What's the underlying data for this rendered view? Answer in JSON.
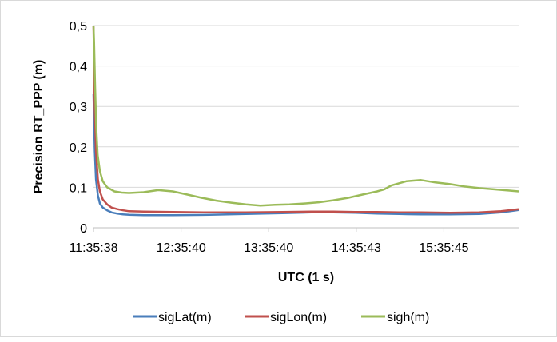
{
  "chart_data": {
    "type": "line",
    "title": "",
    "xlabel": "UTC (1 s)",
    "ylabel": "Precision RT_PPP  (m)",
    "x_tick_labels": [
      "11:35:38",
      "12:35:40",
      "13:35:40",
      "14:35:43",
      "15:35:45"
    ],
    "x_range": [
      "11:35:38",
      "16:27:00"
    ],
    "y_tick_labels": [
      "0",
      "0,1",
      "0,2",
      "0,3",
      "0,4",
      "0,5"
    ],
    "ylim": [
      0,
      0.5
    ],
    "grid": "horizontal",
    "legend_position": "bottom",
    "series": [
      {
        "name": "sigLat(m)",
        "color": "#4a7ebb",
        "x": [
          "11:35:38",
          "11:36:30",
          "11:37:20",
          "11:38:40",
          "11:40:00",
          "11:42:00",
          "11:45:00",
          "11:48:00",
          "11:52:00",
          "11:56:00",
          "12:00:00",
          "12:10:00",
          "12:30:00",
          "12:55:00",
          "13:20:00",
          "13:45:00",
          "14:05:00",
          "14:20:00",
          "14:35:00",
          "14:50:00",
          "15:05:00",
          "15:20:00",
          "15:40:00",
          "16:00:00",
          "16:15:00",
          "16:27:00"
        ],
        "values": [
          0.33,
          0.19,
          0.12,
          0.08,
          0.06,
          0.05,
          0.043,
          0.038,
          0.035,
          0.033,
          0.032,
          0.031,
          0.031,
          0.032,
          0.034,
          0.036,
          0.038,
          0.038,
          0.037,
          0.035,
          0.034,
          0.033,
          0.033,
          0.034,
          0.038,
          0.044
        ]
      },
      {
        "name": "sigLon(m)",
        "color": "#c0504d",
        "x": [
          "11:35:38",
          "11:36:30",
          "11:37:20",
          "11:38:40",
          "11:40:00",
          "11:42:00",
          "11:45:00",
          "11:48:00",
          "11:52:00",
          "11:56:00",
          "12:00:00",
          "12:10:00",
          "12:30:00",
          "12:55:00",
          "13:20:00",
          "13:45:00",
          "14:05:00",
          "14:20:00",
          "14:35:00",
          "14:50:00",
          "15:05:00",
          "15:20:00",
          "15:40:00",
          "16:00:00",
          "16:15:00",
          "16:27:00"
        ],
        "values": [
          0.5,
          0.29,
          0.19,
          0.12,
          0.09,
          0.07,
          0.058,
          0.05,
          0.046,
          0.043,
          0.041,
          0.04,
          0.039,
          0.038,
          0.038,
          0.039,
          0.04,
          0.04,
          0.039,
          0.039,
          0.038,
          0.038,
          0.037,
          0.038,
          0.041,
          0.046
        ]
      },
      {
        "name": "sigh(m)",
        "color": "#9bbb59",
        "x": [
          "11:35:38",
          "11:36:00",
          "11:36:45",
          "11:37:30",
          "11:38:30",
          "11:40:00",
          "11:42:00",
          "11:45:00",
          "11:50:00",
          "11:55:00",
          "12:00:00",
          "12:10:00",
          "12:20:00",
          "12:30:00",
          "12:40:00",
          "12:50:00",
          "13:00:00",
          "13:10:00",
          "13:20:00",
          "13:30:00",
          "13:40:00",
          "13:50:00",
          "14:00:00",
          "14:10:00",
          "14:20:00",
          "14:30:00",
          "14:40:00",
          "14:50:00",
          "14:55:00",
          "15:00:00",
          "15:10:00",
          "15:20:00",
          "15:30:00",
          "15:40:00",
          "15:50:00",
          "16:00:00",
          "16:10:00",
          "16:20:00",
          "16:27:00"
        ],
        "values": [
          0.5,
          0.46,
          0.35,
          0.25,
          0.18,
          0.14,
          0.115,
          0.1,
          0.09,
          0.087,
          0.086,
          0.088,
          0.093,
          0.09,
          0.082,
          0.074,
          0.067,
          0.062,
          0.058,
          0.055,
          0.057,
          0.058,
          0.06,
          0.063,
          0.068,
          0.074,
          0.082,
          0.09,
          0.095,
          0.105,
          0.115,
          0.118,
          0.112,
          0.108,
          0.102,
          0.098,
          0.095,
          0.092,
          0.09
        ]
      }
    ],
    "annotations": []
  }
}
